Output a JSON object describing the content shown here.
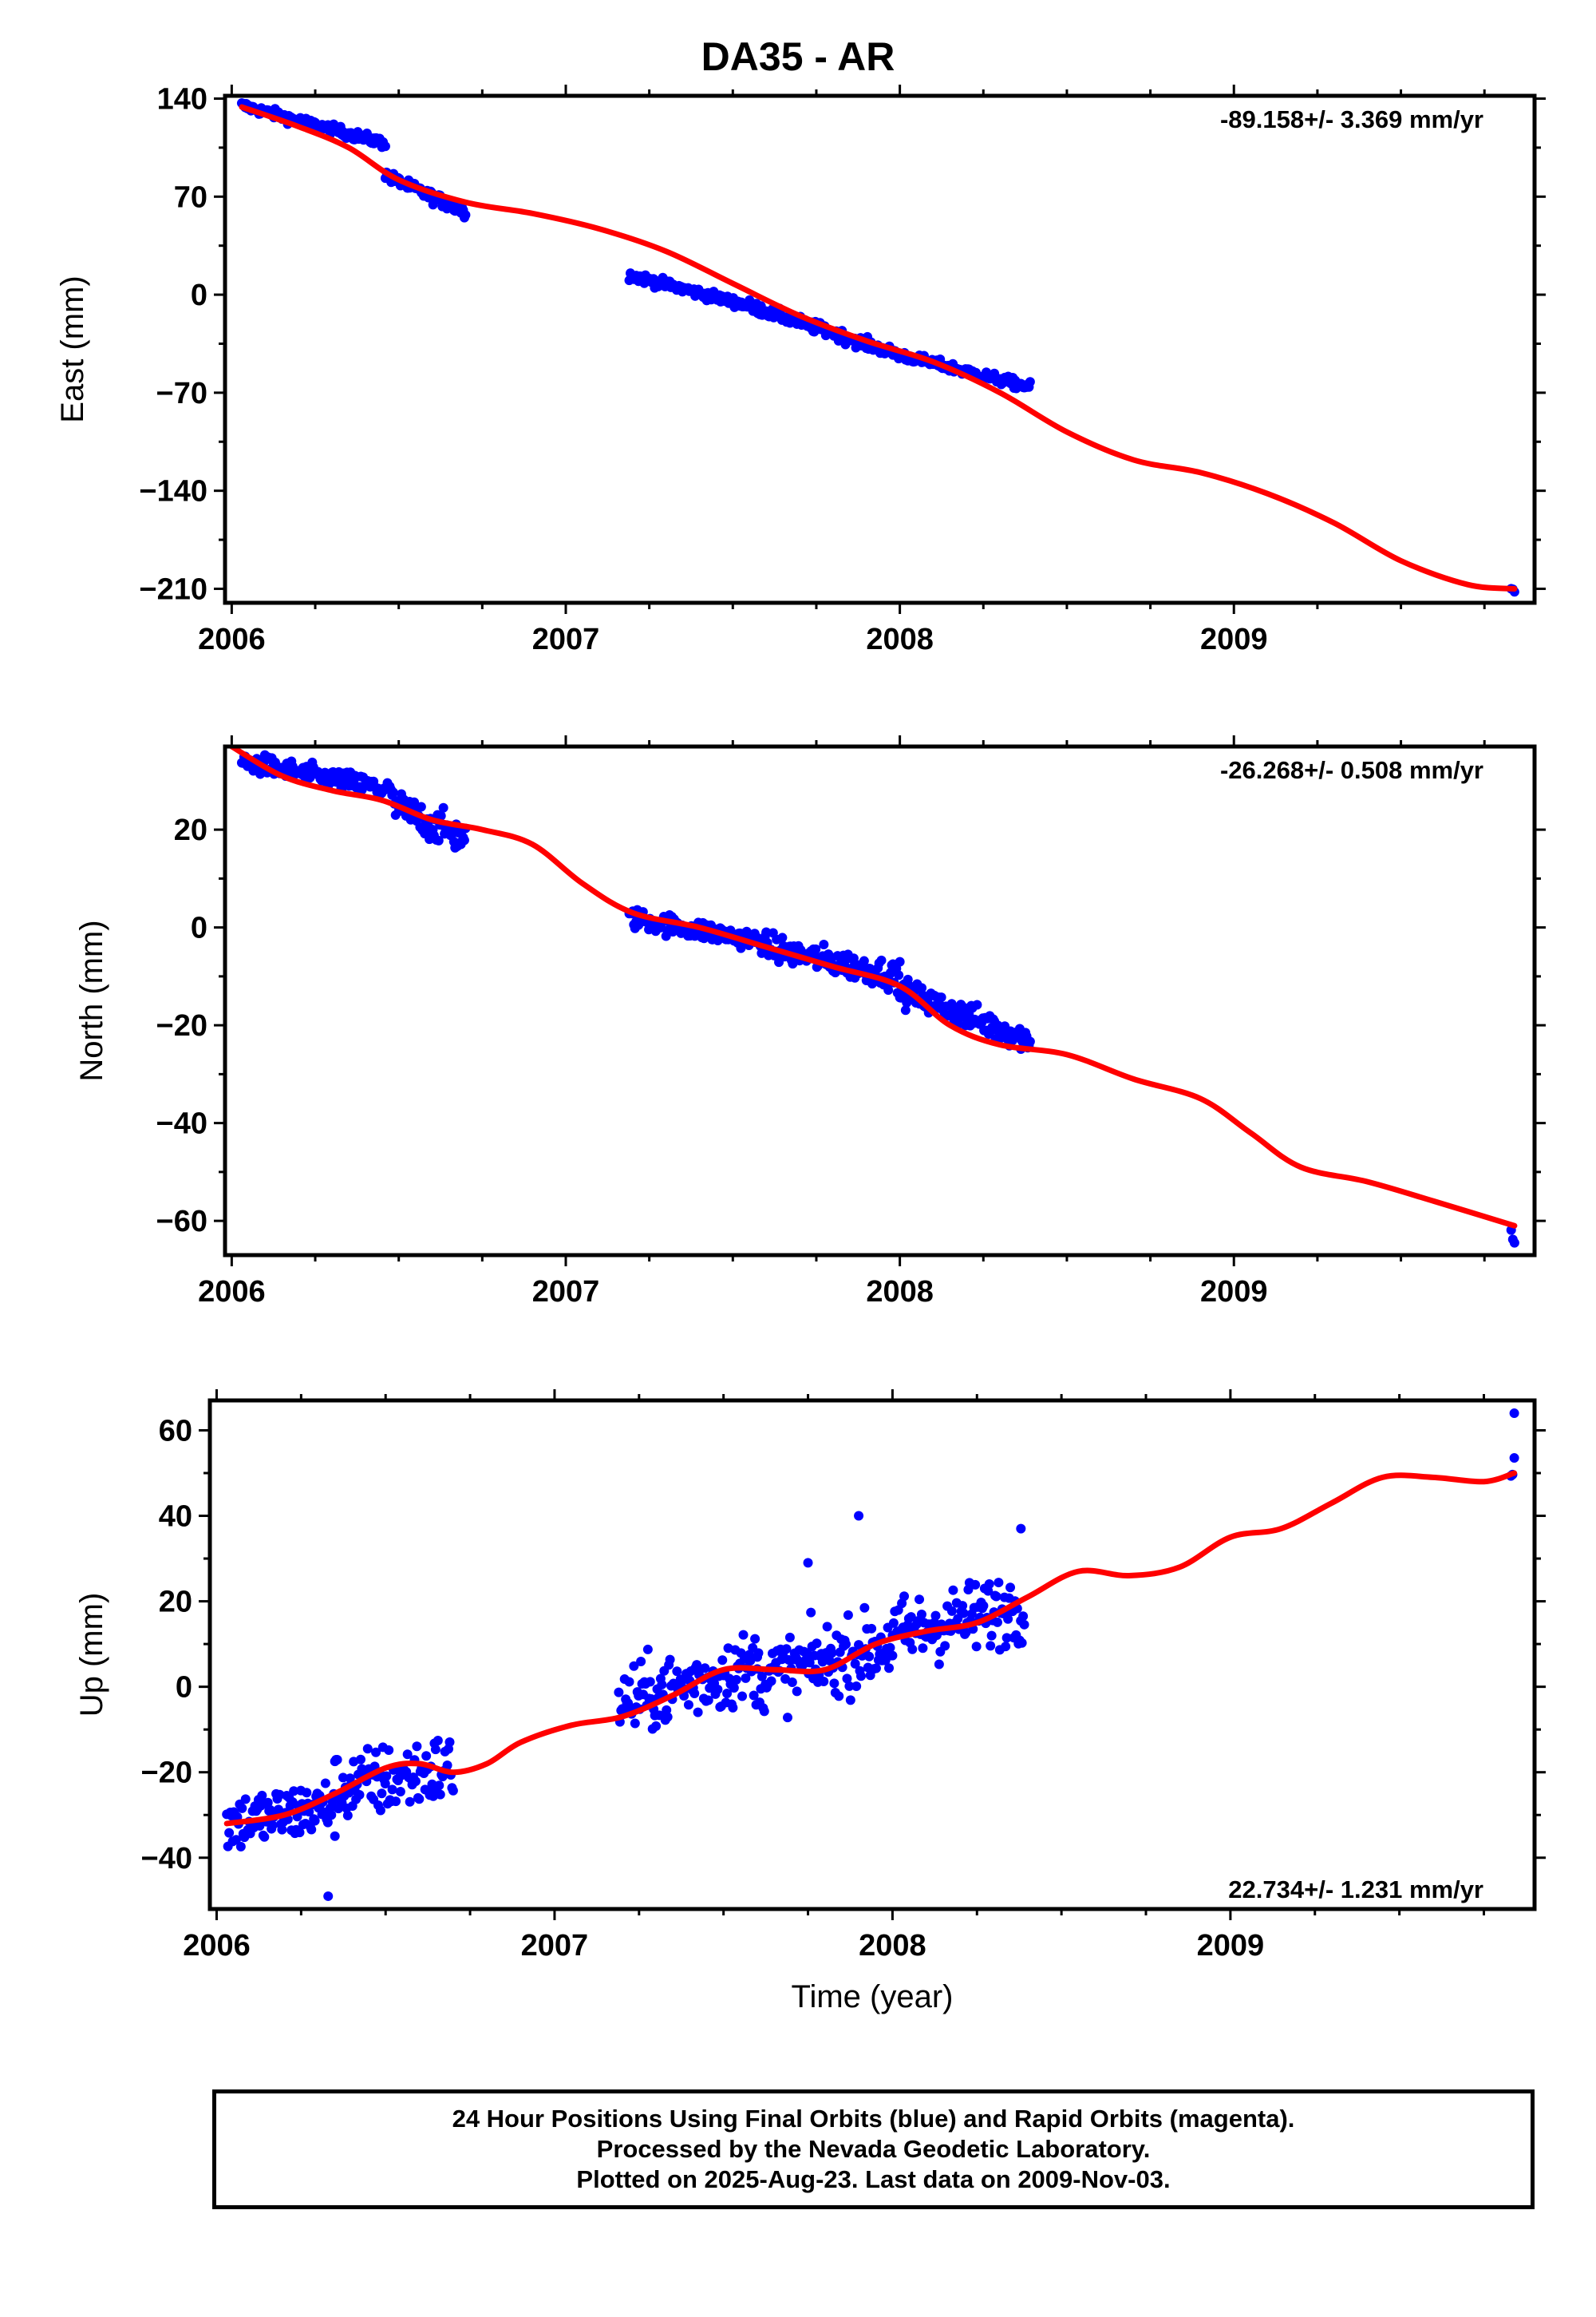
{
  "title": "DA35 - AR",
  "colors": {
    "final_orbits": "#0000ff",
    "model": "#ff0000",
    "frame": "#000000"
  },
  "chart_data": [
    {
      "type": "scatter",
      "panel": "east",
      "ylabel": "East (mm)",
      "xlabel": "",
      "xlim": [
        2005.98,
        2009.9
      ],
      "ylim": [
        -220,
        142
      ],
      "x_ticks": [
        "2006",
        "2007",
        "2008",
        "2009"
      ],
      "y_ticks": [
        "140",
        "70",
        "0",
        "−70",
        "−140",
        "−210"
      ],
      "y_tick_values": [
        140,
        70,
        0,
        -70,
        -140,
        -210
      ],
      "rate_text": "-89.158+/- 3.369 mm/yr",
      "rate_position": "top-right",
      "segments": [
        {
          "t0": 2006.03,
          "t1": 2006.46,
          "v0": 135,
          "v1": 108,
          "noise": 2.5
        },
        {
          "t0": 2006.46,
          "t1": 2006.7,
          "v0": 85,
          "v1": 59,
          "noise": 3
        },
        {
          "t0": 2007.19,
          "t1": 2007.55,
          "v0": 14,
          "v1": -8,
          "noise": 2.5
        },
        {
          "t0": 2007.55,
          "t1": 2008.0,
          "v0": -8,
          "v1": -43,
          "noise": 3
        },
        {
          "t0": 2008.0,
          "t1": 2008.39,
          "v0": -43,
          "v1": -66,
          "noise": 2.5
        },
        {
          "t0": 2009.83,
          "t1": 2009.84,
          "v0": -210,
          "v1": -212,
          "noise": 1
        }
      ],
      "model_curve": {
        "x": [
          2006.03,
          2006.2,
          2006.35,
          2006.5,
          2006.7,
          2006.9,
          2007.1,
          2007.3,
          2007.5,
          2007.7,
          2007.9,
          2008.1,
          2008.3,
          2008.5,
          2008.7,
          2008.9,
          2009.1,
          2009.3,
          2009.5,
          2009.7,
          2009.84
        ],
        "y": [
          134,
          120,
          105,
          82,
          66,
          58,
          47,
          31,
          8,
          -15,
          -33,
          -48,
          -70,
          -98,
          -118,
          -127,
          -142,
          -163,
          -190,
          -207,
          -210
        ]
      }
    },
    {
      "type": "scatter",
      "panel": "north",
      "ylabel": "North (mm)",
      "xlabel": "",
      "xlim": [
        2005.98,
        2009.9
      ],
      "ylim": [
        -67,
        37
      ],
      "x_ticks": [
        "2006",
        "2007",
        "2008",
        "2009"
      ],
      "y_ticks": [
        "20",
        "0",
        "−20",
        "−40",
        "−60"
      ],
      "y_tick_values": [
        20,
        0,
        -20,
        -40,
        -60
      ],
      "rate_text": "-26.268+/- 0.508 mm/yr",
      "rate_position": "top-right",
      "segments": [
        {
          "t0": 2006.03,
          "t1": 2006.48,
          "v0": 34,
          "v1": 28,
          "noise": 1.5
        },
        {
          "t0": 2006.48,
          "t1": 2006.7,
          "v0": 25,
          "v1": 18,
          "noise": 2.5
        },
        {
          "t0": 2007.19,
          "t1": 2007.6,
          "v0": 2,
          "v1": -3,
          "noise": 1.5
        },
        {
          "t0": 2007.6,
          "t1": 2008.0,
          "v0": -4,
          "v1": -10,
          "noise": 2
        },
        {
          "t0": 2008.0,
          "t1": 2008.39,
          "v0": -13,
          "v1": -23,
          "noise": 2
        },
        {
          "t0": 2009.83,
          "t1": 2009.84,
          "v0": -62,
          "v1": -64,
          "noise": 1
        }
      ],
      "model_curve": {
        "x": [
          2006.0,
          2006.15,
          2006.3,
          2006.45,
          2006.6,
          2006.75,
          2006.9,
          2007.05,
          2007.2,
          2007.4,
          2007.6,
          2007.8,
          2008.0,
          2008.15,
          2008.3,
          2008.5,
          2008.7,
          2008.9,
          2009.05,
          2009.2,
          2009.4,
          2009.6,
          2009.84
        ],
        "y": [
          37,
          31,
          28,
          26,
          22,
          20,
          17,
          9,
          3,
          0,
          -4,
          -8,
          -12,
          -20,
          -24,
          -26,
          -31,
          -35,
          -42,
          -49,
          -52,
          -56,
          -61
        ]
      }
    },
    {
      "type": "scatter",
      "panel": "up",
      "ylabel": "Up (mm)",
      "xlabel": "Time (year)",
      "xlim": [
        2005.98,
        2009.9
      ],
      "ylim": [
        -52,
        67
      ],
      "x_ticks": [
        "2006",
        "2007",
        "2008",
        "2009"
      ],
      "y_ticks": [
        "60",
        "40",
        "20",
        "0",
        "−20",
        "−40"
      ],
      "y_tick_values": [
        60,
        40,
        20,
        0,
        -20,
        -40
      ],
      "rate_text": "22.734+/- 1.231 mm/yr",
      "rate_position": "bottom-right",
      "segments": [
        {
          "t0": 2006.03,
          "t1": 2006.35,
          "v0": -32,
          "v1": -28,
          "noise": 5
        },
        {
          "t0": 2006.35,
          "t1": 2006.7,
          "v0": -24,
          "v1": -19,
          "noise": 6
        },
        {
          "t0": 2007.19,
          "t1": 2007.6,
          "v0": -4,
          "v1": 5,
          "noise": 6
        },
        {
          "t0": 2007.6,
          "t1": 2008.0,
          "v0": 2,
          "v1": 10,
          "noise": 6
        },
        {
          "t0": 2008.0,
          "t1": 2008.39,
          "v0": 12,
          "v1": 19,
          "noise": 6
        },
        {
          "t0": 2009.83,
          "t1": 2009.84,
          "v0": 50,
          "v1": 52,
          "noise": 2
        }
      ],
      "outliers": [
        [
          2006.33,
          -49
        ],
        [
          2007.9,
          40
        ],
        [
          2008.38,
          37
        ],
        [
          2007.75,
          29
        ],
        [
          2009.84,
          64
        ]
      ],
      "model_curve": {
        "x": [
          2006.03,
          2006.2,
          2006.35,
          2006.5,
          2006.6,
          2006.7,
          2006.8,
          2006.9,
          2007.05,
          2007.2,
          2007.35,
          2007.5,
          2007.65,
          2007.8,
          2007.95,
          2008.1,
          2008.25,
          2008.4,
          2008.55,
          2008.7,
          2008.85,
          2009.0,
          2009.15,
          2009.3,
          2009.45,
          2009.6,
          2009.75,
          2009.84
        ],
        "y": [
          -32,
          -30,
          -25,
          -19,
          -18,
          -20,
          -18,
          -13,
          -9,
          -7,
          -2,
          4,
          4,
          4,
          10,
          13,
          15,
          21,
          27,
          26,
          28,
          35,
          37,
          43,
          49,
          49,
          48,
          50
        ]
      }
    }
  ],
  "footer": {
    "line1": "24 Hour Positions Using Final Orbits (blue) and Rapid Orbits (magenta).",
    "line2": "Processed by the Nevada Geodetic Laboratory.",
    "line3": "Plotted on 2025-Aug-23. Last data on 2009-Nov-03."
  }
}
